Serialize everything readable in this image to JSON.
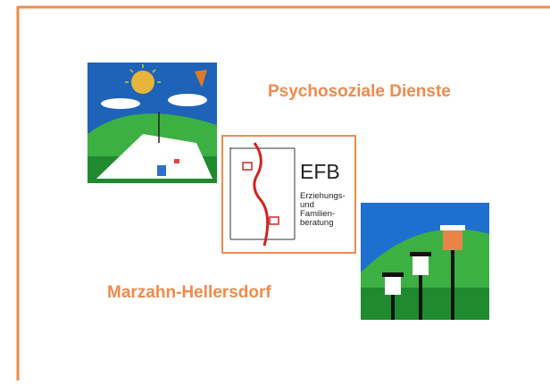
{
  "header": {
    "title": "Psychosoziale Dienste",
    "subtitle": "Marzahn-Hellersdorf"
  },
  "logo": {
    "abbr": "EFB",
    "lines": [
      "Erziehungs-",
      "und",
      "Familien-",
      "beratung"
    ]
  }
}
